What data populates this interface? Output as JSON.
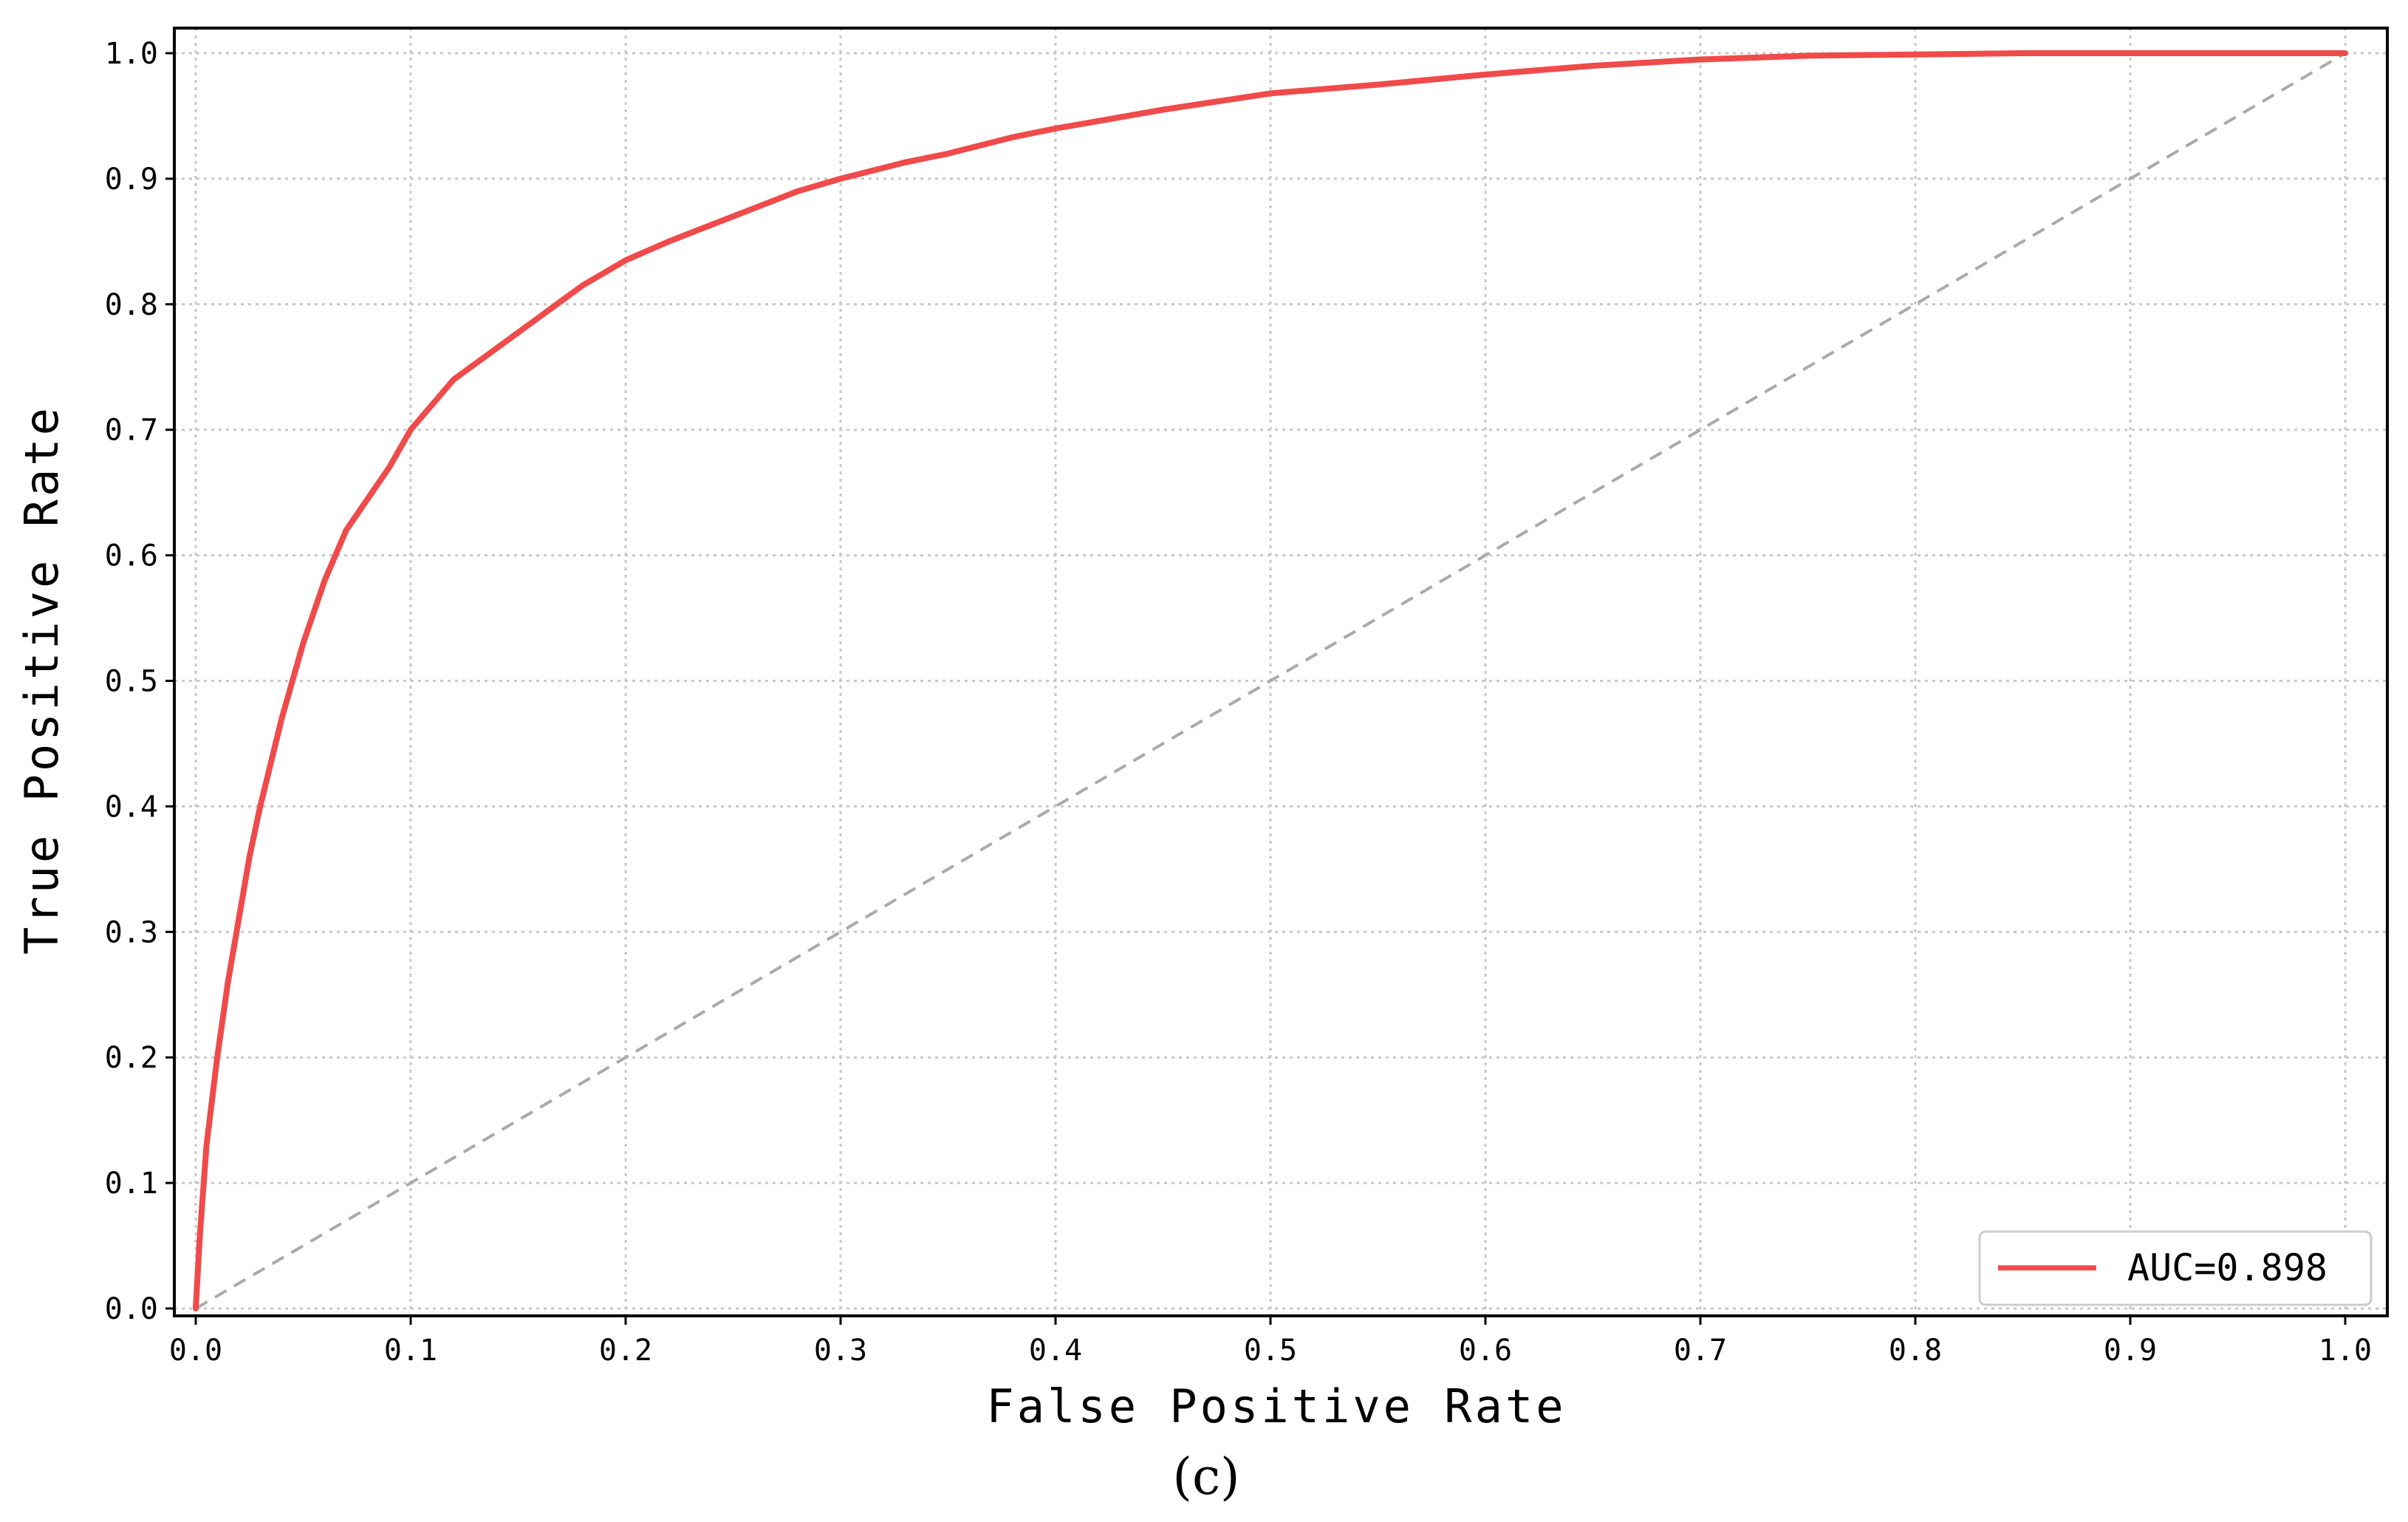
{
  "chart_data": {
    "type": "line",
    "title": "",
    "xlabel": "False Positive Rate",
    "ylabel": "True Positive Rate",
    "xlim": [
      -0.01,
      1.02
    ],
    "ylim": [
      -0.01,
      1.02
    ],
    "grid": true,
    "legend_position": "bottom-right",
    "x_ticks": [
      "0.0",
      "0.1",
      "0.2",
      "0.3",
      "0.4",
      "0.5",
      "0.6",
      "0.7",
      "0.8",
      "0.9",
      "1.0"
    ],
    "y_ticks": [
      "0.0",
      "0.1",
      "0.2",
      "0.3",
      "0.4",
      "0.5",
      "0.6",
      "0.7",
      "0.8",
      "0.9",
      "1.0"
    ],
    "series": [
      {
        "name": "AUC=0.898",
        "color": "#f04a4a",
        "style": "solid",
        "x": [
          0.0,
          0.002,
          0.005,
          0.01,
          0.015,
          0.02,
          0.025,
          0.03,
          0.04,
          0.05,
          0.06,
          0.07,
          0.08,
          0.09,
          0.1,
          0.11,
          0.12,
          0.14,
          0.16,
          0.18,
          0.2,
          0.22,
          0.25,
          0.28,
          0.3,
          0.33,
          0.35,
          0.38,
          0.4,
          0.45,
          0.5,
          0.55,
          0.6,
          0.65,
          0.7,
          0.75,
          0.8,
          0.85,
          0.9,
          0.95,
          1.0
        ],
        "y": [
          0.0,
          0.06,
          0.13,
          0.2,
          0.26,
          0.31,
          0.36,
          0.4,
          0.47,
          0.53,
          0.58,
          0.62,
          0.645,
          0.67,
          0.7,
          0.72,
          0.74,
          0.765,
          0.79,
          0.815,
          0.835,
          0.85,
          0.87,
          0.89,
          0.9,
          0.913,
          0.92,
          0.933,
          0.94,
          0.955,
          0.968,
          0.975,
          0.983,
          0.99,
          0.995,
          0.998,
          0.999,
          1.0,
          1.0,
          1.0,
          1.0
        ]
      },
      {
        "name": "",
        "color": "#aaaaaa",
        "style": "dashed",
        "x": [
          0.0,
          1.0
        ],
        "y": [
          0.0,
          1.0
        ]
      }
    ]
  },
  "legend": {
    "entry_label": "AUC=0.898",
    "entry_color": "#f04a4a"
  },
  "caption": "(c)",
  "colors": {
    "curve": "#f04a4a",
    "diagonal": "#aaaaaa",
    "grid": "#c8c8c8",
    "frame": "#000000"
  }
}
